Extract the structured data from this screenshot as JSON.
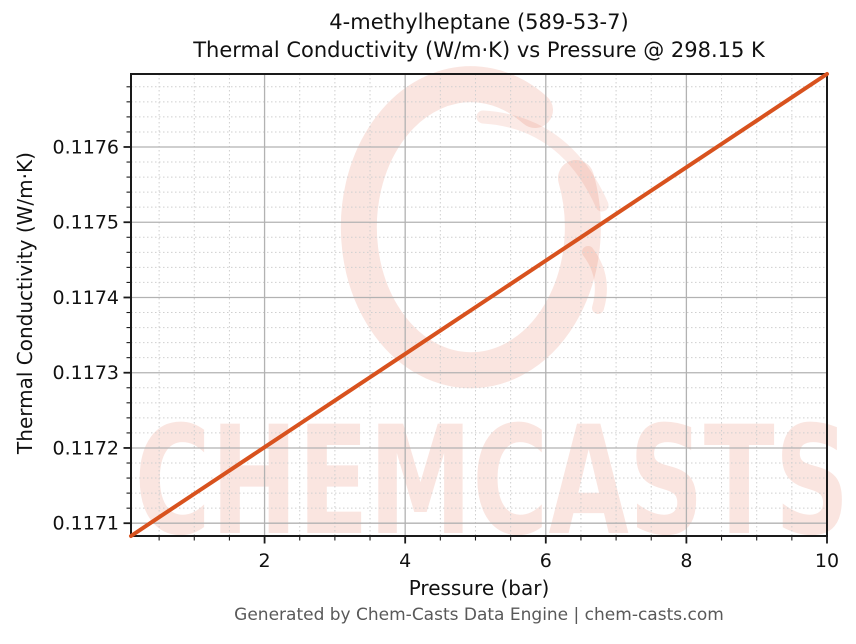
{
  "figure": {
    "title_line1": "4-methylheptane (589-53-7)",
    "title_line2": "Thermal Conductivity (W/m·K) vs Pressure @ 298.15 K",
    "footer": "Generated by Chem-Casts Data Engine | chem-casts.com",
    "watermark_text": "CHEMCASTS"
  },
  "colors": {
    "line": "#d8521e",
    "watermark": "#e2603c",
    "grid_major": "#b2b2b2",
    "grid_minor": "#cfcfcf",
    "spine": "#1a1a1a",
    "tick_label": "#111111",
    "footer_text": "#595959"
  },
  "chart_data": {
    "type": "line",
    "title": "4-methylheptane (589-53-7)",
    "subtitle": "Thermal Conductivity (W/m·K) vs Pressure @ 298.15 K",
    "xlabel": "Pressure (bar)",
    "ylabel": "Thermal Conductivity (W/m·K)",
    "xlim": [
      0.1,
      10
    ],
    "ylim": [
      0.117083,
      0.117697
    ],
    "x_major_ticks": [
      2,
      4,
      6,
      8,
      10
    ],
    "x_minor_step": 0.5,
    "y_major_ticks": [
      0.1171,
      0.1172,
      0.1173,
      0.1174,
      0.1175,
      0.1176
    ],
    "y_minor_step": 2e-05,
    "y_tick_decimals": 4,
    "grid": "major-solid, minor-dotted",
    "legend": "none",
    "series": [
      {
        "name": "Thermal Conductivity @ 298.15 K",
        "x": [
          0.1,
          0.5,
          1.0,
          1.5,
          2.0,
          2.5,
          3.0,
          3.5,
          4.0,
          4.5,
          5.0,
          5.5,
          6.0,
          6.5,
          7.0,
          7.5,
          8.0,
          8.5,
          9.0,
          9.5,
          10.0
        ],
        "y": [
          0.117083,
          0.117108,
          0.117139,
          0.11717,
          0.117201,
          0.117232,
          0.117263,
          0.117294,
          0.117325,
          0.117356,
          0.117387,
          0.117418,
          0.117449,
          0.11748,
          0.117511,
          0.117542,
          0.117573,
          0.117604,
          0.117635,
          0.117666,
          0.117697
        ]
      }
    ]
  }
}
